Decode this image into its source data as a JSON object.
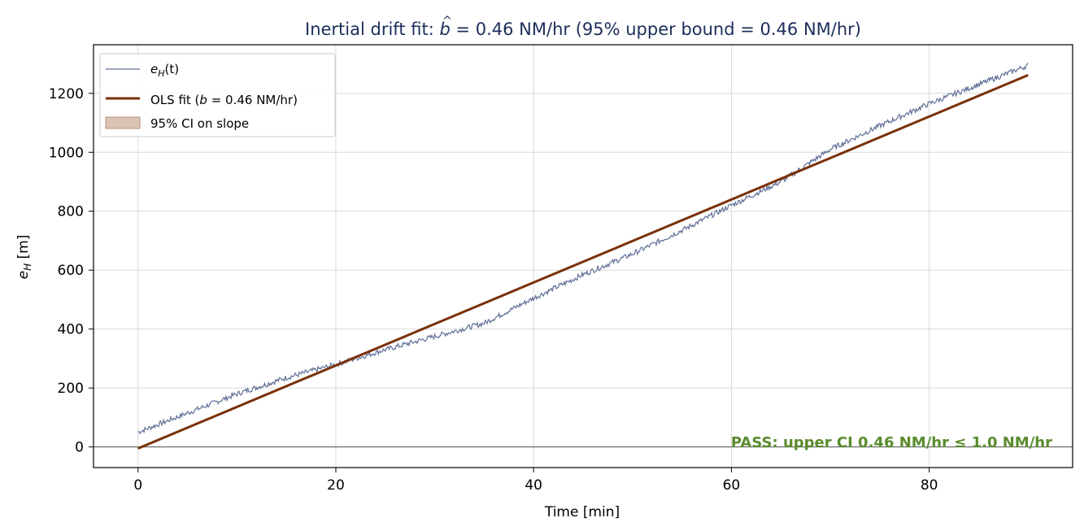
{
  "chart_data": {
    "type": "line",
    "title": {
      "prefix": "Inertial drift fit: ",
      "var": "b",
      "suffix": " = 0.46 NM/hr (95% upper bound = 0.46 NM/hr)"
    },
    "xlabel": "Time [min]",
    "ylabel": {
      "base": "e",
      "sub": "H",
      "unit": " [m]"
    },
    "xlim": [
      -4.5,
      94.5
    ],
    "ylim": [
      -70,
      1365
    ],
    "xticks": [
      0,
      20,
      40,
      60,
      80
    ],
    "yticks": [
      0,
      200,
      400,
      600,
      800,
      1000,
      1200
    ],
    "grid": true,
    "legend_position": "top-left",
    "legend": {
      "series_label": {
        "base": "e",
        "sub": "H",
        "rest": "(t)"
      },
      "fit_label": {
        "prefix": "OLS fit (",
        "var": "b",
        "suffix": " = 0.46 NM/hr)"
      },
      "ci_label": "95% CI on slope"
    },
    "series": [
      {
        "kind": "noisy-measurement",
        "color": "#5f6f96",
        "x": [
          0,
          5,
          10,
          15,
          20,
          25,
          30,
          35,
          40,
          45,
          50,
          55,
          60,
          65,
          70,
          75,
          80,
          85,
          90
        ],
        "y": [
          50,
          115,
          180,
          235,
          280,
          330,
          375,
          420,
          505,
          585,
          655,
          735,
          820,
          900,
          1010,
          1090,
          1165,
          1230,
          1295
        ]
      },
      {
        "kind": "ols-fit",
        "color": "#7a3006",
        "x": [
          0,
          90
        ],
        "y": [
          -5,
          1262
        ]
      }
    ],
    "ci_fill_color": "#dcc4b4",
    "annotation": {
      "text": "PASS: upper CI 0.46 NM/hr ≤ 1.0 NM/hr",
      "color": "#5a8c2e"
    },
    "colors": {
      "title": "#1b2e5a",
      "axis": "#000000",
      "grid": "#d9d9d9",
      "zero_line": "#555555"
    }
  }
}
